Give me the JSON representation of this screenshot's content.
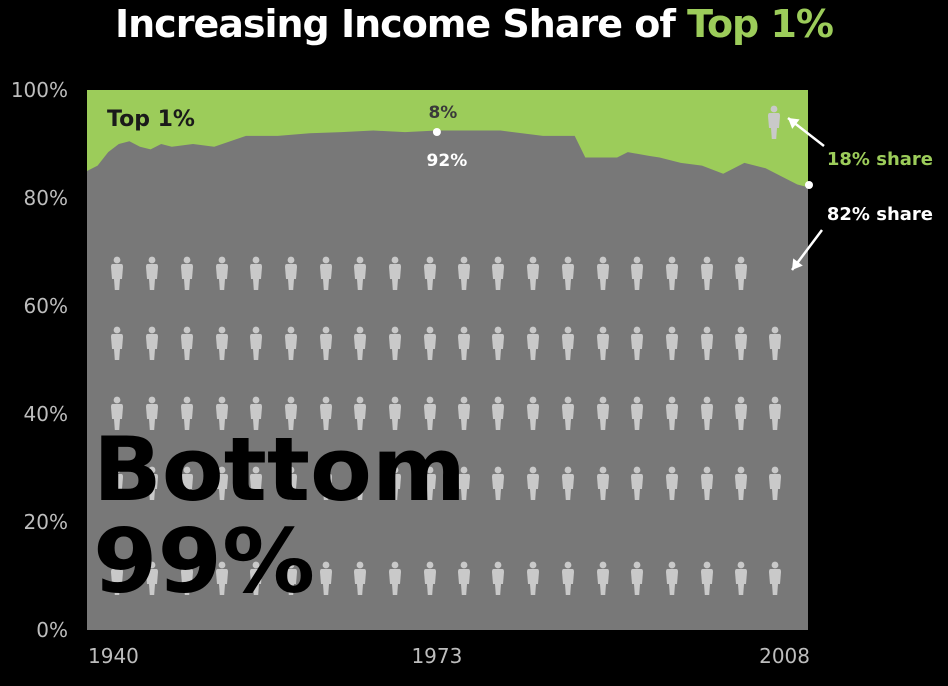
{
  "header": {
    "title_prefix": "Increasing Income Share of ",
    "title_highlight": "Top 1%"
  },
  "colors": {
    "background": "#000000",
    "top_area": "#9ccc5a",
    "bottom_area": "#787878",
    "figure": "#c9c9c9",
    "axis_text": "#bdbdbd",
    "label_dark": "#1a1a1a",
    "label_white": "#ffffff",
    "label_green": "#9ccc5a"
  },
  "chart_data": {
    "type": "area",
    "title": "Increasing Income Share of Top 1%",
    "xlabel": "",
    "ylabel": "",
    "xlim": [
      1940,
      2008
    ],
    "ylim": [
      0,
      100
    ],
    "x_ticks": [
      {
        "value": 1940,
        "label": "1940"
      },
      {
        "value": 1973,
        "label": "1973"
      },
      {
        "value": 2008,
        "label": "2008"
      }
    ],
    "y_ticks": [
      {
        "value": 0,
        "label": "0%"
      },
      {
        "value": 20,
        "label": "20%"
      },
      {
        "value": 40,
        "label": "40%"
      },
      {
        "value": 60,
        "label": "60%"
      },
      {
        "value": 80,
        "label": "80%"
      },
      {
        "value": 100,
        "label": "100%"
      }
    ],
    "x": [
      1940,
      1941,
      1942,
      1943,
      1944,
      1945,
      1946,
      1947,
      1948,
      1950,
      1952,
      1955,
      1958,
      1961,
      1964,
      1967,
      1970,
      1973,
      1976,
      1979,
      1983,
      1986,
      1987,
      1988,
      1990,
      1991,
      1993,
      1994,
      1996,
      1998,
      2000,
      2002,
      2004,
      2006,
      2007,
      2008
    ],
    "series": [
      {
        "name": "Bottom 99%",
        "values": [
          85,
          86,
          88.5,
          90,
          90.5,
          89.5,
          89,
          90,
          89.5,
          90,
          89.5,
          91.5,
          91.5,
          92,
          92.2,
          92.5,
          92.2,
          92.5,
          92.5,
          92.5,
          91.5,
          91.5,
          87.5,
          87.5,
          87.5,
          88.5,
          87.8,
          87.5,
          86.5,
          86,
          84.5,
          86.5,
          85.5,
          83.5,
          82.5,
          82
        ]
      },
      {
        "name": "Top 1%",
        "values": [
          15,
          14,
          11.5,
          10,
          9.5,
          10.5,
          11,
          10,
          10.5,
          10,
          10.5,
          8.5,
          8.5,
          8,
          7.8,
          7.5,
          7.8,
          7.5,
          7.5,
          7.5,
          8.5,
          8.5,
          12.5,
          12.5,
          12.5,
          11.5,
          12.2,
          12.5,
          13.5,
          14,
          15.5,
          13.5,
          14.5,
          16.5,
          17.5,
          18
        ]
      }
    ],
    "annotations": {
      "top_area_label": "Top 1%",
      "bottom_area_label_line1": "Bottom",
      "bottom_area_label_line2": "99%",
      "share_1973_top": "8%",
      "share_1973_bottom": "92%",
      "share_2008_top": "18% share",
      "share_2008_bottom": "82% share"
    }
  }
}
